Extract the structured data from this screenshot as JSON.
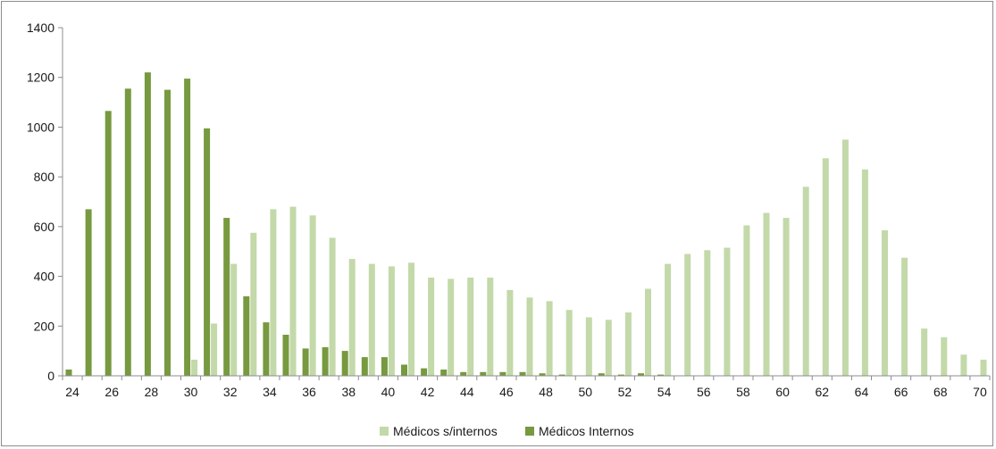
{
  "chart_data": {
    "type": "bar",
    "title": "",
    "xlabel": "",
    "ylabel": "",
    "ylim": [
      0,
      1400
    ],
    "yticks": [
      0,
      200,
      400,
      600,
      800,
      1000,
      1200,
      1400
    ],
    "x": [
      24,
      25,
      26,
      27,
      28,
      29,
      30,
      31,
      32,
      33,
      34,
      35,
      36,
      37,
      38,
      39,
      40,
      41,
      42,
      43,
      44,
      45,
      46,
      47,
      48,
      49,
      50,
      51,
      52,
      53,
      54,
      55,
      56,
      57,
      58,
      59,
      60,
      61,
      62,
      63,
      64,
      65,
      66,
      67,
      68,
      69,
      70
    ],
    "xticks": [
      24,
      26,
      28,
      30,
      32,
      34,
      36,
      38,
      40,
      42,
      44,
      46,
      48,
      50,
      52,
      54,
      56,
      58,
      60,
      62,
      64,
      66,
      68,
      70
    ],
    "legend_position": "bottom",
    "grid": false,
    "series": [
      {
        "name": "Médicos s/internos",
        "color": "#c3d9a9",
        "values": [
          0,
          0,
          0,
          0,
          0,
          0,
          65,
          210,
          450,
          575,
          670,
          680,
          645,
          555,
          470,
          450,
          440,
          455,
          395,
          390,
          395,
          395,
          345,
          315,
          300,
          265,
          235,
          225,
          255,
          350,
          450,
          490,
          505,
          515,
          605,
          655,
          635,
          760,
          875,
          950,
          830,
          585,
          475,
          190,
          155,
          85,
          65
        ]
      },
      {
        "name": "Médicos Internos",
        "color": "#77993f",
        "values": [
          25,
          670,
          1065,
          1155,
          1220,
          1150,
          1195,
          995,
          635,
          320,
          215,
          165,
          110,
          115,
          100,
          75,
          75,
          45,
          30,
          25,
          15,
          15,
          15,
          15,
          10,
          5,
          0,
          10,
          5,
          10,
          5,
          0,
          0,
          0,
          0,
          0,
          0,
          0,
          0,
          0,
          0,
          0,
          0,
          0,
          0,
          0,
          0
        ]
      }
    ]
  }
}
